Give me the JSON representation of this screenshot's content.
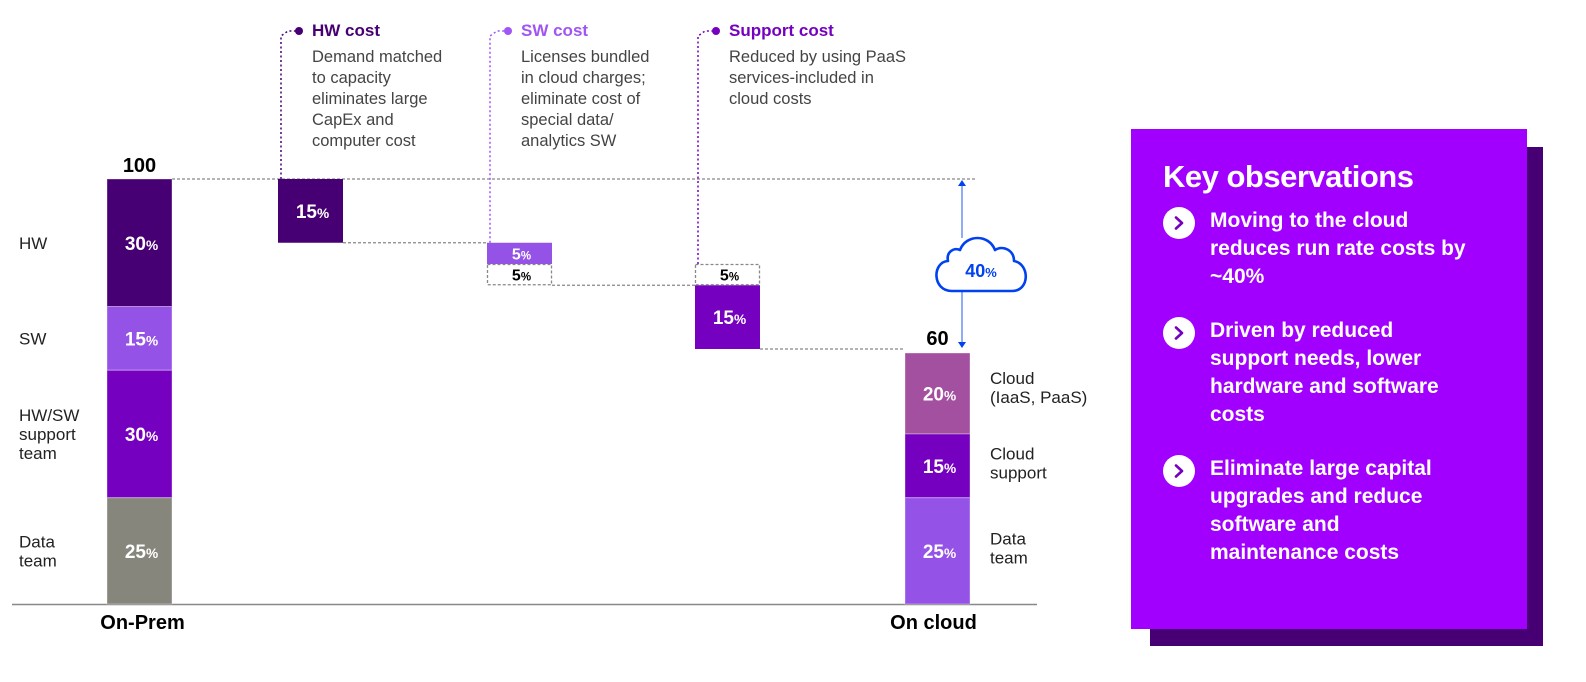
{
  "chart_data": {
    "type": "waterfall",
    "title": "",
    "ylim": [
      0,
      100
    ],
    "colors": {
      "hw": "#460073",
      "sw": "#9552e6",
      "support": "#7500c0",
      "data_onprem": "#86867d",
      "cloud": "#a450a0",
      "data_cloud": "#9552e6",
      "accent_blue": "#0041f0",
      "callout_hw": "#460073",
      "callout_sw": "#a055f5",
      "callout_support": "#7500c0"
    },
    "on_prem": {
      "label": "On-Prem",
      "total": 100,
      "total_label": "100",
      "segments": [
        {
          "name": "HW",
          "label": "HW",
          "value": 30,
          "value_label": "30",
          "color_key": "hw"
        },
        {
          "name": "SW",
          "label": "SW",
          "value": 15,
          "value_label": "15",
          "color_key": "sw"
        },
        {
          "name": "HW/SW support team",
          "label": [
            "HW/SW",
            "support",
            "team"
          ],
          "value": 30,
          "value_label": "30",
          "color_key": "support"
        },
        {
          "name": "Data team",
          "label": [
            "Data",
            "team"
          ],
          "value": 25,
          "value_label": "25",
          "color_key": "data_onprem"
        }
      ]
    },
    "steps": [
      {
        "name": "HW cost",
        "title": "HW cost",
        "description": [
          "Demand matched",
          "to capacity",
          "eliminates large",
          "CapEx and",
          "computer cost"
        ],
        "from": 100,
        "to": 85,
        "value_label": "15",
        "color_key": "hw",
        "callout_key": "callout_hw"
      },
      {
        "name": "SW cost",
        "title": "SW cost",
        "description": [
          "Licenses bundled",
          "in cloud charges;",
          "eliminate cost of",
          "special data/",
          "analytics SW"
        ],
        "from": 85,
        "to": 80,
        "value_label": "5",
        "color_key": "sw",
        "callout_key": "callout_sw",
        "extra": {
          "from": 80,
          "to": 75,
          "value_label": "5",
          "style": "dashed"
        }
      },
      {
        "name": "Support cost",
        "title": "Support cost",
        "description": [
          "Reduced by using PaaS",
          "services-included in",
          "cloud costs"
        ],
        "from": 75,
        "to": 60,
        "value_label": "15",
        "color_key": "support",
        "callout_key": "callout_support",
        "extra": {
          "from": 80,
          "to": 75,
          "value_label": "5",
          "style": "dashed"
        }
      }
    ],
    "on_cloud": {
      "label": "On cloud",
      "total": 60,
      "total_label": "60",
      "segments": [
        {
          "name": "Cloud (IaaS, PaaS)",
          "label": [
            "Cloud",
            "(IaaS, PaaS)"
          ],
          "value": 20,
          "value_label": "20",
          "color_key": "cloud"
        },
        {
          "name": "Cloud support",
          "label": [
            "Cloud",
            "support"
          ],
          "value": 15,
          "value_label": "15",
          "color_key": "support"
        },
        {
          "name": "Data team",
          "label": [
            "Data",
            "team"
          ],
          "value": 25,
          "value_label": "25",
          "color_key": "data_cloud"
        }
      ]
    },
    "savings": {
      "value": 40,
      "value_label": "40",
      "icon": "cloud-icon"
    },
    "percent_sign": "%"
  },
  "panel": {
    "title": "Key observations",
    "items": [
      {
        "icon": "chevron-right-icon",
        "text": "Moving to the cloud reduces run rate costs by ~40%"
      },
      {
        "icon": "chevron-right-icon",
        "text": "Driven by reduced support needs, lower hardware and software costs"
      },
      {
        "icon": "chevron-right-icon",
        "text": "Eliminate large capital upgrades and reduce software and maintenance costs"
      }
    ]
  }
}
